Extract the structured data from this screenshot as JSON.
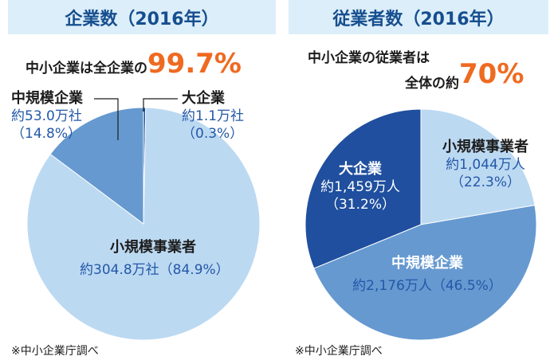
{
  "chart_data": [
    {
      "type": "pie",
      "title": "企業数（2016年）",
      "headline": {
        "text": "中小企業は全企業の",
        "value": "99.7%"
      },
      "slices": [
        {
          "name": "小規模事業者",
          "value": 304.8,
          "value_label": "約304.8万社",
          "percent_label": "（84.9%）",
          "color": "#bcd9f2"
        },
        {
          "name": "中規模企業",
          "value": 53.0,
          "value_label": "約53.0万社",
          "percent_label": "（14.8%）",
          "color": "#6699d0"
        },
        {
          "name": "大企業",
          "value": 1.1,
          "value_label": "約1.1万社",
          "percent_label": "（0.3%）",
          "color": "#1f4f9e"
        }
      ],
      "source": "※中小企業庁調べ"
    },
    {
      "type": "pie",
      "title": "従業者数（2016年）",
      "headline": {
        "text_line1": "中小企業の従業者は",
        "text_line2": "全体の約",
        "value": "70%"
      },
      "slices": [
        {
          "name": "小規模事業者",
          "value": 1044,
          "value_label": "約1,044万人",
          "percent_label": "（22.3%）",
          "color": "#bcd9f2"
        },
        {
          "name": "中規模企業",
          "value": 2176,
          "value_label": "約2,176万人",
          "percent_label": "（46.5%）",
          "color": "#6699d0"
        },
        {
          "name": "大企業",
          "value": 1459,
          "value_label": "約1,459万人",
          "percent_label": "（31.2%）",
          "color": "#1f4f9e"
        }
      ],
      "source": "※中小企業庁調べ"
    }
  ]
}
